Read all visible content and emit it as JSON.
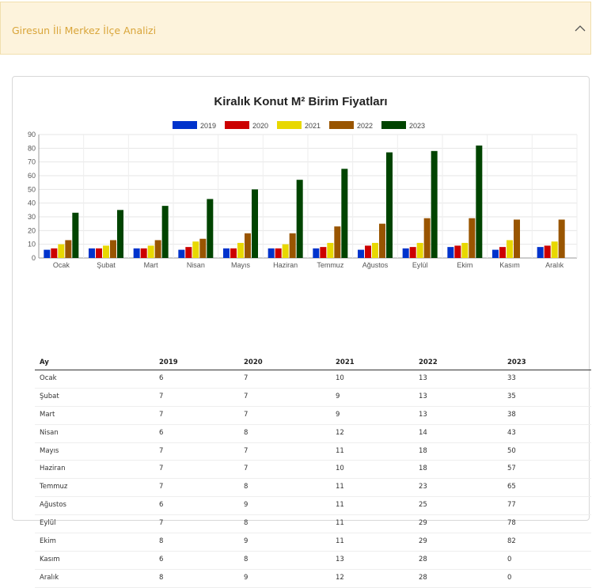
{
  "accordion": {
    "title": "Giresun İli Merkez İlçe Analizi"
  },
  "chart_data": {
    "type": "bar",
    "title": "Kiralık Konut M² Birim Fiyatları",
    "categories": [
      "Ocak",
      "Şubat",
      "Mart",
      "Nisan",
      "Mayıs",
      "Haziran",
      "Temmuz",
      "Ağustos",
      "Eylül",
      "Ekim",
      "Kasım",
      "Aralık"
    ],
    "series": [
      {
        "name": "2019",
        "color": "#0033cc",
        "values": [
          6,
          7,
          7,
          6,
          7,
          7,
          7,
          6,
          7,
          8,
          6,
          8
        ]
      },
      {
        "name": "2020",
        "color": "#cc0000",
        "values": [
          7,
          7,
          7,
          8,
          7,
          7,
          8,
          9,
          8,
          9,
          8,
          9
        ]
      },
      {
        "name": "2021",
        "color": "#e8d800",
        "values": [
          10,
          9,
          9,
          12,
          11,
          10,
          11,
          11,
          11,
          11,
          13,
          12
        ]
      },
      {
        "name": "2022",
        "color": "#995500",
        "values": [
          13,
          13,
          13,
          14,
          18,
          18,
          23,
          25,
          29,
          29,
          28,
          28
        ]
      },
      {
        "name": "2023",
        "color": "#004400",
        "values": [
          33,
          35,
          38,
          43,
          50,
          57,
          65,
          77,
          78,
          82,
          0,
          0
        ]
      }
    ],
    "yticks": [
      0,
      10,
      20,
      30,
      40,
      50,
      60,
      70,
      80,
      90
    ],
    "ylim": [
      0,
      90
    ],
    "grid": true,
    "legend_position": "top"
  },
  "table": {
    "headers": [
      "Ay",
      "2019",
      "2020",
      "2021",
      "2022",
      "2023"
    ],
    "rows": [
      [
        "Ocak",
        "6",
        "7",
        "10",
        "13",
        "33"
      ],
      [
        "Şubat",
        "7",
        "7",
        "9",
        "13",
        "35"
      ],
      [
        "Mart",
        "7",
        "7",
        "9",
        "13",
        "38"
      ],
      [
        "Nisan",
        "6",
        "8",
        "12",
        "14",
        "43"
      ],
      [
        "Mayıs",
        "7",
        "7",
        "11",
        "18",
        "50"
      ],
      [
        "Haziran",
        "7",
        "7",
        "10",
        "18",
        "57"
      ],
      [
        "Temmuz",
        "7",
        "8",
        "11",
        "23",
        "65"
      ],
      [
        "Ağustos",
        "6",
        "9",
        "11",
        "25",
        "77"
      ],
      [
        "Eylül",
        "7",
        "8",
        "11",
        "29",
        "78"
      ],
      [
        "Ekim",
        "8",
        "9",
        "11",
        "29",
        "82"
      ],
      [
        "Kasım",
        "6",
        "8",
        "13",
        "28",
        "0"
      ],
      [
        "Aralık",
        "8",
        "9",
        "12",
        "28",
        "0"
      ]
    ]
  }
}
